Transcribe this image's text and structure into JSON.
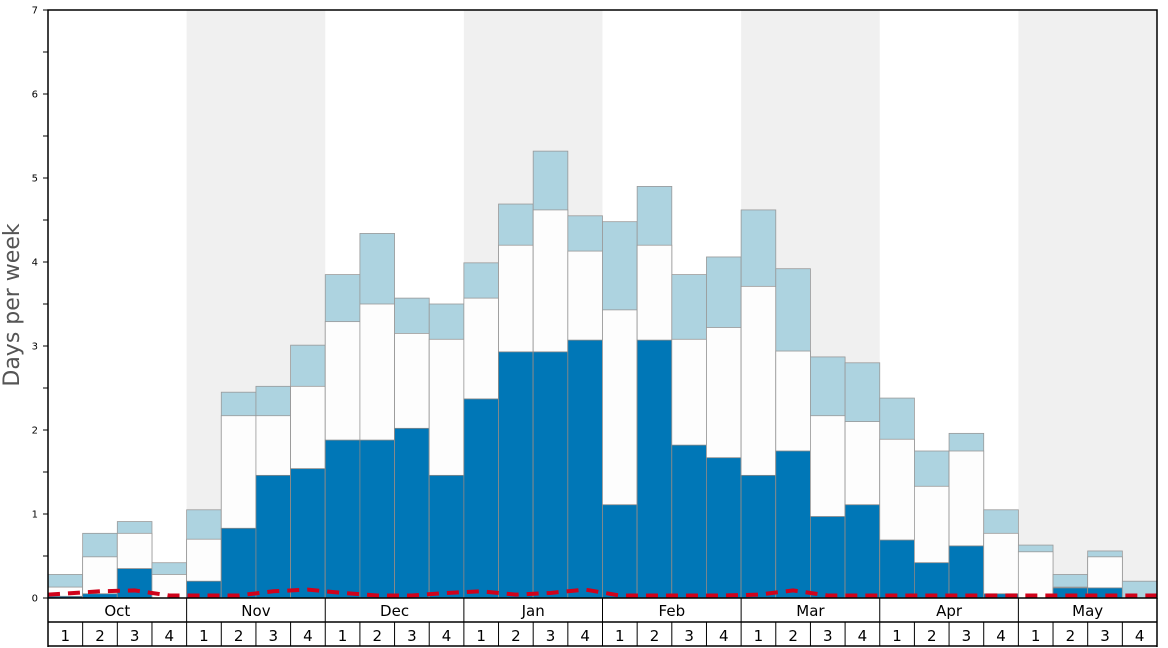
{
  "chart_data": {
    "type": "bar",
    "ylabel": "Days per week",
    "ylim": [
      0,
      7
    ],
    "yticks": [
      "0",
      "1",
      "2",
      "3",
      "4",
      "5",
      "6",
      "7"
    ],
    "months": [
      "Oct",
      "Nov",
      "Dec",
      "Jan",
      "Feb",
      "Mar",
      "Apr",
      "May"
    ],
    "weeks": [
      "1",
      "2",
      "3",
      "4"
    ],
    "colors": {
      "dark": "#0077b7",
      "white": "#fdfdfd",
      "light": "#add3e0",
      "line": "#d0021b",
      "shade": "#f0f0f0"
    },
    "series": [
      {
        "values": [
          0.02,
          0.05,
          0.35,
          0.0,
          0.2,
          0.83,
          1.46,
          1.54,
          1.88,
          1.88,
          2.02,
          1.46,
          2.37,
          2.93,
          2.93,
          3.07,
          1.11,
          3.07,
          1.82,
          1.67,
          1.46,
          1.75,
          0.97,
          1.11,
          0.69,
          0.42,
          0.62,
          0.05,
          0.0,
          0.12,
          0.12,
          0.0
        ]
      },
      {
        "values": [
          0.13,
          0.49,
          0.77,
          0.28,
          0.7,
          2.17,
          2.17,
          2.52,
          3.29,
          3.5,
          3.15,
          3.08,
          3.57,
          4.2,
          4.62,
          4.13,
          3.43,
          4.2,
          3.08,
          3.22,
          3.71,
          2.94,
          2.17,
          2.1,
          1.89,
          1.33,
          1.75,
          0.77,
          0.55,
          0.13,
          0.49,
          0.0
        ]
      },
      {
        "values": [
          0.28,
          0.77,
          0.91,
          0.42,
          1.05,
          2.45,
          2.52,
          3.01,
          3.85,
          4.34,
          3.57,
          3.5,
          3.99,
          4.69,
          5.32,
          4.55,
          4.48,
          4.9,
          3.85,
          4.06,
          4.62,
          3.92,
          2.87,
          2.8,
          2.38,
          1.75,
          1.96,
          1.05,
          0.63,
          0.28,
          0.56,
          0.2
        ]
      },
      {
        "values": [
          0.04,
          0.08,
          0.09,
          0.03,
          0.03,
          0.03,
          0.08,
          0.1,
          0.06,
          0.03,
          0.03,
          0.06,
          0.08,
          0.04,
          0.06,
          0.1,
          0.03,
          0.03,
          0.03,
          0.03,
          0.04,
          0.09,
          0.03,
          0.03,
          0.03,
          0.03,
          0.03,
          0.03,
          0.03,
          0.03,
          0.03,
          0.03
        ]
      }
    ]
  }
}
